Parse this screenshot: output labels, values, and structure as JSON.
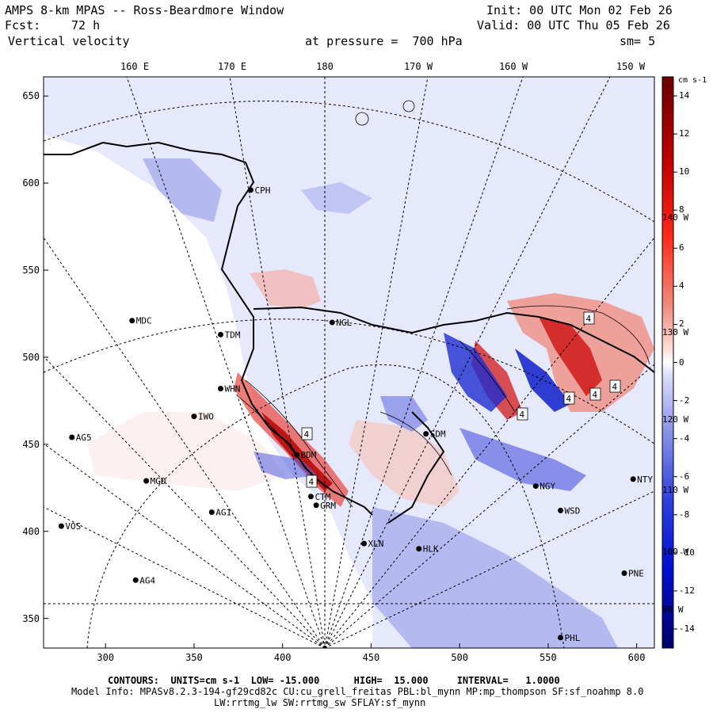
{
  "header": {
    "title": "AMPS 8-km MPAS -- Ross-Beardmore Window",
    "forecast_label": "Fcst:",
    "forecast_hours": "72 h",
    "field": "Vertical velocity",
    "init": "Init: 00 UTC Mon 02 Feb 26",
    "valid": "Valid: 00 UTC Thu 05 Feb 26",
    "pressure": "at pressure =  700 hPa",
    "smoothing": "sm= 5"
  },
  "axes": {
    "top_ticks": [
      "160 E",
      "170 E",
      "180",
      "170 W",
      "160 W",
      "150 W"
    ],
    "left_ticks": [
      "650",
      "600",
      "550",
      "500",
      "450",
      "400",
      "350"
    ],
    "left_values": [
      650,
      600,
      550,
      500,
      450,
      400,
      350
    ],
    "bottom_ticks": [
      "300",
      "350",
      "400",
      "450",
      "500",
      "550",
      "600"
    ],
    "bottom_values": [
      300,
      350,
      400,
      450,
      500,
      550,
      600
    ],
    "x_range": [
      265,
      610
    ],
    "y_range": [
      333,
      661
    ]
  },
  "meridian_labels": [
    "140 W",
    "130 W",
    "120 W",
    "110 W",
    "100 W",
    "90 W"
  ],
  "colorbar": {
    "units": "cm s-1",
    "tick_labels": [
      "14",
      "12",
      "10",
      "8",
      "6",
      "4",
      "2",
      "0",
      "-2",
      "-4",
      "-6",
      "-8",
      "-10",
      "-12",
      "-14"
    ],
    "tick_values": [
      14,
      12,
      10,
      8,
      6,
      4,
      2,
      0,
      -2,
      -4,
      -6,
      -8,
      -10,
      -12,
      -14
    ],
    "range": [
      -15,
      15
    ]
  },
  "stations": [
    {
      "name": "CPH",
      "x": 382,
      "y": 596
    },
    {
      "name": "NGL",
      "x": 428,
      "y": 520
    },
    {
      "name": "MDC",
      "x": 315,
      "y": 521
    },
    {
      "name": "TDM",
      "x": 365,
      "y": 513
    },
    {
      "name": "WHN",
      "x": 365,
      "y": 482
    },
    {
      "name": "IWO",
      "x": 350,
      "y": 466
    },
    {
      "name": "AG5",
      "x": 281,
      "y": 454
    },
    {
      "name": "BDM",
      "x": 408,
      "y": 444
    },
    {
      "name": "SDM",
      "x": 481,
      "y": 456
    },
    {
      "name": "MGD",
      "x": 323,
      "y": 429
    },
    {
      "name": "CTM",
      "x": 416,
      "y": 420
    },
    {
      "name": "GRM",
      "x": 419,
      "y": 415
    },
    {
      "name": "AG1",
      "x": 360,
      "y": 411
    },
    {
      "name": "NGY",
      "x": 543,
      "y": 426
    },
    {
      "name": "NTY",
      "x": 598,
      "y": 430
    },
    {
      "name": "WSD",
      "x": 557,
      "y": 412
    },
    {
      "name": "VOS",
      "x": 275,
      "y": 403
    },
    {
      "name": "XLN",
      "x": 446,
      "y": 393
    },
    {
      "name": "HLK",
      "x": 477,
      "y": 390
    },
    {
      "name": "AG4",
      "x": 317,
      "y": 372
    },
    {
      "name": "PNE",
      "x": 593,
      "y": 376
    },
    {
      "name": "PHL",
      "x": 557,
      "y": 339
    }
  ],
  "extrema_labels": [
    "4",
    "4",
    "4",
    "4",
    "4",
    "4",
    "4"
  ],
  "footer": {
    "contours": "CONTOURS:  UNITS=cm s-1  LOW= -15.000      HIGH=  15.000     INTERVAL=   1.0000",
    "model_info": "Model Info: MPASv8.2.3-194-gf29cd82c CU:cu_grell_freitas PBL:bl_mynn MP:mp_thompson SF:sf_noahmp 8.0",
    "model_info2": "LW:rrtmg_lw SW:rrtmg_sw SFLAY:sf_mynn"
  }
}
